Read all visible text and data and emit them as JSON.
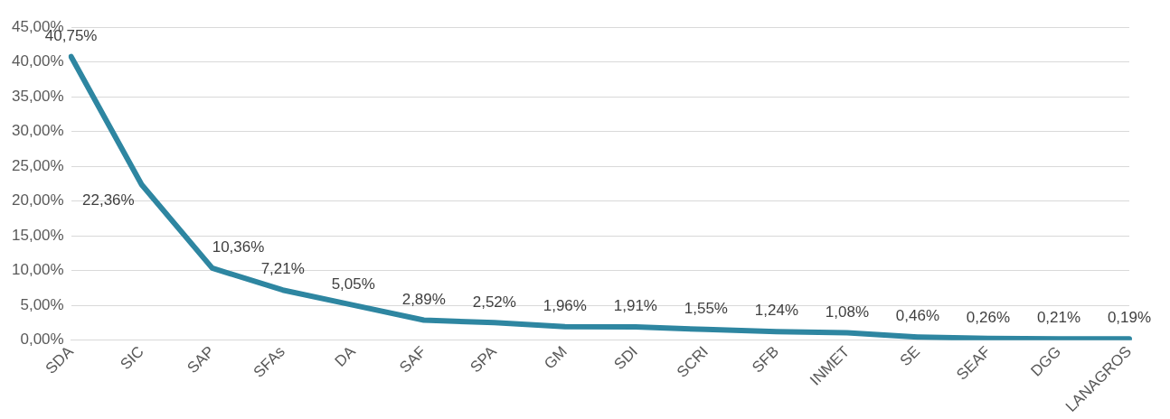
{
  "chart_data": {
    "type": "line",
    "categories": [
      "SDA",
      "SIC",
      "SAP",
      "SFAs",
      "DA",
      "SAF",
      "SPA",
      "GM",
      "SDI",
      "SCRI",
      "SFB",
      "INMET",
      "SE",
      "SEAF",
      "DGG",
      "LANAGROS"
    ],
    "series": [
      {
        "color": "#2e86a1",
        "values": [
          40.75,
          22.36,
          10.36,
          7.21,
          5.05,
          2.89,
          2.52,
          1.96,
          1.91,
          1.55,
          1.24,
          1.08,
          0.46,
          0.26,
          0.21,
          0.19
        ],
        "value_labels": [
          "40,75%",
          "22,36%",
          "10,36%",
          "7,21%",
          "5,05%",
          "2,89%",
          "2,52%",
          "1,96%",
          "1,91%",
          "1,55%",
          "1,24%",
          "1,08%",
          "0,46%",
          "0,26%",
          "0,21%",
          "0,19%"
        ]
      }
    ],
    "ylim": [
      0,
      45
    ],
    "yticks": [
      {
        "value": 0,
        "label": "0,00%"
      },
      {
        "value": 5,
        "label": "5,00%"
      },
      {
        "value": 10,
        "label": "10,00%"
      },
      {
        "value": 15,
        "label": "15,00%"
      },
      {
        "value": 20,
        "label": "20,00%"
      },
      {
        "value": 25,
        "label": "25,00%"
      },
      {
        "value": 30,
        "label": "30,00%"
      },
      {
        "value": 35,
        "label": "35,00%"
      },
      {
        "value": 40,
        "label": "40,00%"
      },
      {
        "value": 45,
        "label": "45,00%"
      }
    ],
    "grid": "y",
    "legend": false,
    "marker": "none",
    "line_style": "solid"
  }
}
